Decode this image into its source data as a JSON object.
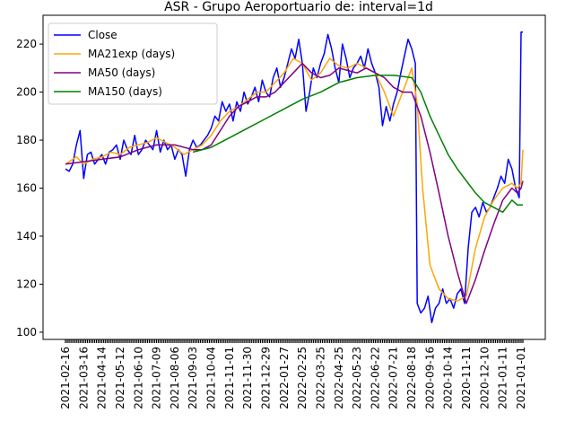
{
  "chart_data": {
    "type": "line",
    "title": "ASR - Grupo Aeroportuario de: interval=1d",
    "xlabel": "",
    "ylabel": "",
    "ylim": [
      97,
      232
    ],
    "yticks": [
      100,
      120,
      140,
      160,
      180,
      200,
      220
    ],
    "xtick_labels": [
      "2021-02-16",
      "2021-03-16",
      "2021-04-14",
      "2021-05-12",
      "2021-06-10",
      "2021-07-09",
      "2021-08-06",
      "2021-09-03",
      "2021-10-04",
      "2021-11-01",
      "2021-11-30",
      "2021-12-29",
      "2022-01-27",
      "2022-02-25",
      "2022-03-25",
      "2022-04-25",
      "2022-05-23",
      "2022-06-22",
      "2022-07-21",
      "2022-08-18",
      "2020-09-16",
      "2020-10-14",
      "2020-11-11",
      "2020-12-10",
      "2021-01-11",
      "2021-01-01"
    ],
    "x_index": [
      0,
      10,
      20,
      30,
      40,
      50,
      60,
      70,
      80,
      90,
      100,
      110,
      120,
      130,
      140,
      150,
      160,
      170,
      180,
      190,
      200,
      210,
      220,
      230,
      240,
      250
    ],
    "legend": {
      "position": "top-left",
      "entries": [
        "Close",
        "MA21exp (days)",
        "MA50 (days)",
        "MA150 (days)"
      ]
    },
    "grid": false,
    "series": [
      {
        "name": "Close",
        "color": "#0000ff",
        "points": [
          [
            0,
            168
          ],
          [
            2,
            167
          ],
          [
            4,
            170
          ],
          [
            6,
            178
          ],
          [
            8,
            184
          ],
          [
            10,
            164
          ],
          [
            12,
            174
          ],
          [
            14,
            175
          ],
          [
            16,
            170
          ],
          [
            18,
            172
          ],
          [
            20,
            174
          ],
          [
            22,
            170
          ],
          [
            24,
            175
          ],
          [
            26,
            176
          ],
          [
            28,
            178
          ],
          [
            30,
            172
          ],
          [
            32,
            180
          ],
          [
            34,
            176
          ],
          [
            36,
            174
          ],
          [
            38,
            182
          ],
          [
            40,
            174
          ],
          [
            42,
            176
          ],
          [
            44,
            180
          ],
          [
            46,
            178
          ],
          [
            48,
            176
          ],
          [
            50,
            184
          ],
          [
            52,
            175
          ],
          [
            54,
            180
          ],
          [
            56,
            176
          ],
          [
            58,
            178
          ],
          [
            60,
            172
          ],
          [
            62,
            176
          ],
          [
            64,
            174
          ],
          [
            66,
            165
          ],
          [
            68,
            176
          ],
          [
            70,
            180
          ],
          [
            72,
            177
          ],
          [
            74,
            178
          ],
          [
            76,
            180
          ],
          [
            78,
            182
          ],
          [
            80,
            185
          ],
          [
            82,
            190
          ],
          [
            84,
            188
          ],
          [
            86,
            196
          ],
          [
            88,
            192
          ],
          [
            90,
            195
          ],
          [
            92,
            188
          ],
          [
            94,
            196
          ],
          [
            96,
            192
          ],
          [
            98,
            200
          ],
          [
            100,
            195
          ],
          [
            102,
            198
          ],
          [
            104,
            202
          ],
          [
            106,
            196
          ],
          [
            108,
            205
          ],
          [
            110,
            200
          ],
          [
            112,
            198
          ],
          [
            114,
            206
          ],
          [
            116,
            210
          ],
          [
            118,
            202
          ],
          [
            120,
            206
          ],
          [
            122,
            212
          ],
          [
            124,
            218
          ],
          [
            126,
            214
          ],
          [
            128,
            222
          ],
          [
            130,
            212
          ],
          [
            132,
            192
          ],
          [
            134,
            200
          ],
          [
            136,
            210
          ],
          [
            138,
            206
          ],
          [
            140,
            212
          ],
          [
            142,
            216
          ],
          [
            144,
            224
          ],
          [
            146,
            218
          ],
          [
            148,
            210
          ],
          [
            150,
            204
          ],
          [
            152,
            220
          ],
          [
            154,
            214
          ],
          [
            156,
            206
          ],
          [
            158,
            210
          ],
          [
            160,
            212
          ],
          [
            162,
            215
          ],
          [
            164,
            210
          ],
          [
            166,
            218
          ],
          [
            168,
            212
          ],
          [
            170,
            208
          ],
          [
            172,
            202
          ],
          [
            174,
            186
          ],
          [
            176,
            194
          ],
          [
            178,
            188
          ],
          [
            180,
            195
          ],
          [
            182,
            200
          ],
          [
            184,
            208
          ],
          [
            186,
            215
          ],
          [
            188,
            222
          ],
          [
            190,
            218
          ],
          [
            192,
            212
          ],
          [
            193,
            112
          ],
          [
            195,
            108
          ],
          [
            197,
            110
          ],
          [
            199,
            115
          ],
          [
            201,
            104
          ],
          [
            203,
            110
          ],
          [
            205,
            112
          ],
          [
            207,
            118
          ],
          [
            209,
            112
          ],
          [
            211,
            114
          ],
          [
            213,
            110
          ],
          [
            215,
            116
          ],
          [
            217,
            118
          ],
          [
            219,
            112
          ],
          [
            221,
            135
          ],
          [
            223,
            150
          ],
          [
            225,
            152
          ],
          [
            227,
            148
          ],
          [
            229,
            154
          ],
          [
            231,
            150
          ],
          [
            233,
            152
          ],
          [
            235,
            156
          ],
          [
            237,
            160
          ],
          [
            239,
            165
          ],
          [
            241,
            162
          ],
          [
            243,
            172
          ],
          [
            245,
            168
          ],
          [
            247,
            160
          ],
          [
            249,
            156
          ],
          [
            250,
            225
          ],
          [
            251,
            225
          ]
        ]
      },
      {
        "name": "MA21exp (days)",
        "color": "#ffa500",
        "points": [
          [
            0,
            170
          ],
          [
            6,
            173
          ],
          [
            10,
            170
          ],
          [
            15,
            172
          ],
          [
            20,
            173
          ],
          [
            25,
            175
          ],
          [
            30,
            174
          ],
          [
            35,
            177
          ],
          [
            40,
            178
          ],
          [
            45,
            179
          ],
          [
            50,
            181
          ],
          [
            55,
            179
          ],
          [
            60,
            177
          ],
          [
            65,
            174
          ],
          [
            70,
            176
          ],
          [
            75,
            178
          ],
          [
            80,
            182
          ],
          [
            85,
            188
          ],
          [
            90,
            192
          ],
          [
            95,
            194
          ],
          [
            100,
            197
          ],
          [
            105,
            200
          ],
          [
            110,
            200
          ],
          [
            115,
            204
          ],
          [
            120,
            208
          ],
          [
            125,
            214
          ],
          [
            130,
            212
          ],
          [
            135,
            205
          ],
          [
            140,
            208
          ],
          [
            145,
            214
          ],
          [
            150,
            211
          ],
          [
            155,
            210
          ],
          [
            160,
            212
          ],
          [
            165,
            210
          ],
          [
            170,
            208
          ],
          [
            175,
            200
          ],
          [
            180,
            190
          ],
          [
            185,
            200
          ],
          [
            190,
            210
          ],
          [
            193,
            195
          ],
          [
            196,
            160
          ],
          [
            200,
            128
          ],
          [
            205,
            118
          ],
          [
            210,
            114
          ],
          [
            215,
            113
          ],
          [
            220,
            115
          ],
          [
            225,
            135
          ],
          [
            230,
            148
          ],
          [
            235,
            155
          ],
          [
            240,
            160
          ],
          [
            245,
            162
          ],
          [
            248,
            160
          ],
          [
            250,
            162
          ],
          [
            251,
            176
          ]
        ]
      },
      {
        "name": "MA50 (days)",
        "color": "#800080",
        "points": [
          [
            0,
            170
          ],
          [
            10,
            171
          ],
          [
            20,
            172
          ],
          [
            30,
            173
          ],
          [
            40,
            176
          ],
          [
            50,
            178
          ],
          [
            60,
            178
          ],
          [
            70,
            176
          ],
          [
            75,
            176
          ],
          [
            80,
            178
          ],
          [
            85,
            184
          ],
          [
            90,
            190
          ],
          [
            95,
            194
          ],
          [
            100,
            196
          ],
          [
            105,
            198
          ],
          [
            110,
            198
          ],
          [
            115,
            200
          ],
          [
            120,
            204
          ],
          [
            125,
            208
          ],
          [
            130,
            212
          ],
          [
            135,
            208
          ],
          [
            140,
            206
          ],
          [
            145,
            207
          ],
          [
            150,
            210
          ],
          [
            155,
            209
          ],
          [
            160,
            208
          ],
          [
            165,
            210
          ],
          [
            170,
            208
          ],
          [
            175,
            206
          ],
          [
            180,
            202
          ],
          [
            185,
            200
          ],
          [
            190,
            200
          ],
          [
            195,
            190
          ],
          [
            200,
            175
          ],
          [
            205,
            158
          ],
          [
            210,
            140
          ],
          [
            215,
            125
          ],
          [
            220,
            112
          ],
          [
            225,
            122
          ],
          [
            230,
            134
          ],
          [
            235,
            145
          ],
          [
            240,
            155
          ],
          [
            245,
            160
          ],
          [
            248,
            158
          ],
          [
            250,
            160
          ],
          [
            251,
            163
          ]
        ]
      },
      {
        "name": "MA150 (days)",
        "color": "#008000",
        "points": [
          [
            70,
            175
          ],
          [
            80,
            177
          ],
          [
            90,
            181
          ],
          [
            100,
            185
          ],
          [
            110,
            189
          ],
          [
            120,
            193
          ],
          [
            130,
            197
          ],
          [
            140,
            200
          ],
          [
            150,
            204
          ],
          [
            160,
            206
          ],
          [
            170,
            207
          ],
          [
            180,
            207
          ],
          [
            190,
            206
          ],
          [
            195,
            200
          ],
          [
            200,
            190
          ],
          [
            205,
            182
          ],
          [
            210,
            174
          ],
          [
            215,
            168
          ],
          [
            220,
            163
          ],
          [
            225,
            158
          ],
          [
            230,
            154
          ],
          [
            235,
            152
          ],
          [
            240,
            150
          ],
          [
            245,
            155
          ],
          [
            248,
            153
          ],
          [
            251,
            153
          ]
        ]
      }
    ]
  }
}
